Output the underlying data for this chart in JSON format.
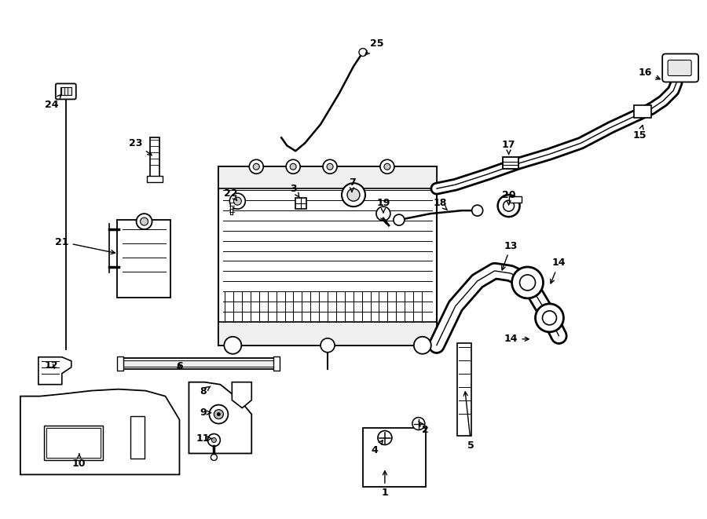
{
  "bg": "#ffffff",
  "lc": "#000000",
  "labels": [
    [
      "1",
      490,
      628,
      490,
      596
    ],
    [
      "2",
      542,
      548,
      533,
      537
    ],
    [
      "3",
      373,
      240,
      383,
      254
    ],
    [
      "4",
      477,
      574,
      490,
      558
    ],
    [
      "5",
      600,
      568,
      592,
      495
    ],
    [
      "6",
      228,
      467,
      228,
      460
    ],
    [
      "7",
      448,
      232,
      448,
      248
    ],
    [
      "8",
      258,
      499,
      268,
      492
    ],
    [
      "9",
      258,
      526,
      272,
      526
    ],
    [
      "10",
      100,
      591,
      100,
      578
    ],
    [
      "11",
      258,
      559,
      270,
      559
    ],
    [
      "12",
      65,
      466,
      72,
      472
    ],
    [
      "13",
      651,
      313,
      638,
      348
    ],
    [
      "14",
      712,
      335,
      700,
      365
    ],
    [
      "14",
      651,
      432,
      678,
      432
    ],
    [
      "15",
      815,
      172,
      820,
      155
    ],
    [
      "16",
      822,
      92,
      845,
      102
    ],
    [
      "17",
      648,
      184,
      648,
      200
    ],
    [
      "18",
      560,
      258,
      570,
      268
    ],
    [
      "19",
      488,
      258,
      488,
      272
    ],
    [
      "20",
      648,
      248,
      648,
      262
    ],
    [
      "21",
      78,
      308,
      150,
      323
    ],
    [
      "22",
      293,
      246,
      302,
      256
    ],
    [
      "23",
      172,
      182,
      196,
      200
    ],
    [
      "24",
      65,
      133,
      80,
      117
    ],
    [
      "25",
      480,
      55,
      462,
      72
    ]
  ]
}
